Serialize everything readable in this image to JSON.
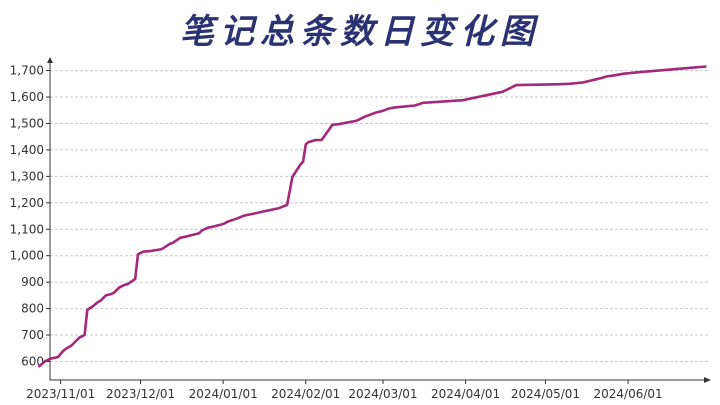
{
  "chart_data": {
    "type": "line",
    "title": "笔记总条数日变化图",
    "xlabel": "",
    "ylabel": "",
    "color": "#a4287b",
    "grid": true,
    "ylim": [
      530,
      1740
    ],
    "xlim": [
      "2023-10-28",
      "2024-07-01"
    ],
    "y_ticks": [
      600,
      700,
      800,
      900,
      1000,
      1100,
      1200,
      1300,
      1400,
      1500,
      1600,
      1700
    ],
    "y_tick_labels": [
      "600",
      "700",
      "800",
      "900",
      "1,000",
      "1,100",
      "1,200",
      "1,300",
      "1,400",
      "1,500",
      "1,600",
      "1,700"
    ],
    "x_ticks": [
      "2023-11-01",
      "2023-12-01",
      "2024-01-01",
      "2024-02-01",
      "2024-03-01",
      "2024-04-01",
      "2024-05-01",
      "2024-06-01"
    ],
    "x_tick_labels": [
      "2023/11/01",
      "2023/12/01",
      "2024/01/01",
      "2024/02/01",
      "2024/03/01",
      "2024/04/01",
      "2024/05/01",
      "2024/06/01"
    ],
    "series": [
      {
        "x": [
          "2023-10-24",
          "2023-10-26",
          "2023-10-28",
          "2023-10-31",
          "2023-11-02",
          "2023-11-03",
          "2023-11-05",
          "2023-11-06",
          "2023-11-08",
          "2023-11-10",
          "2023-11-11",
          "2023-11-13",
          "2023-11-15",
          "2023-11-16",
          "2023-11-18",
          "2023-11-20",
          "2023-11-21",
          "2023-11-23",
          "2023-11-25",
          "2023-11-26",
          "2023-11-28",
          "2023-11-29",
          "2023-11-30",
          "2023-12-02",
          "2023-12-05",
          "2023-12-09",
          "2023-12-12",
          "2023-12-13",
          "2023-12-16",
          "2023-12-17",
          "2023-12-23",
          "2023-12-24",
          "2023-12-26",
          "2023-12-29",
          "2024-01-01",
          "2024-01-03",
          "2024-01-06",
          "2024-01-09",
          "2024-01-13",
          "2024-01-15",
          "2024-01-22",
          "2024-01-25",
          "2024-01-27",
          "2024-01-30",
          "2024-01-31",
          "2024-02-01",
          "2024-02-02",
          "2024-02-03",
          "2024-02-04",
          "2024-02-05",
          "2024-02-07",
          "2024-02-11",
          "2024-02-12",
          "2024-02-13",
          "2024-02-20",
          "2024-02-23",
          "2024-02-27",
          "2024-03-01",
          "2024-03-03",
          "2024-03-05",
          "2024-03-13",
          "2024-03-16",
          "2024-03-19",
          "2024-03-31",
          "2024-04-15",
          "2024-04-20",
          "2024-05-05",
          "2024-05-10",
          "2024-05-15",
          "2024-05-20",
          "2024-05-22",
          "2024-05-24",
          "2024-05-27",
          "2024-05-30",
          "2024-06-04",
          "2024-06-30"
        ],
        "values": [
          582,
          600,
          610,
          617,
          640,
          648,
          660,
          670,
          690,
          700,
          795,
          808,
          825,
          830,
          850,
          855,
          860,
          880,
          890,
          892,
          905,
          912,
          1005,
          1015,
          1018,
          1025,
          1045,
          1048,
          1068,
          1070,
          1085,
          1095,
          1105,
          1112,
          1120,
          1130,
          1140,
          1152,
          1160,
          1165,
          1180,
          1192,
          1298,
          1345,
          1355,
          1420,
          1430,
          1432,
          1436,
          1437,
          1438,
          1495,
          1496,
          1497,
          1510,
          1525,
          1540,
          1548,
          1556,
          1560,
          1568,
          1578,
          1580,
          1588,
          1620,
          1645,
          1648,
          1650,
          1655,
          1667,
          1672,
          1678,
          1682,
          1688,
          1693,
          1715
        ]
      }
    ]
  }
}
